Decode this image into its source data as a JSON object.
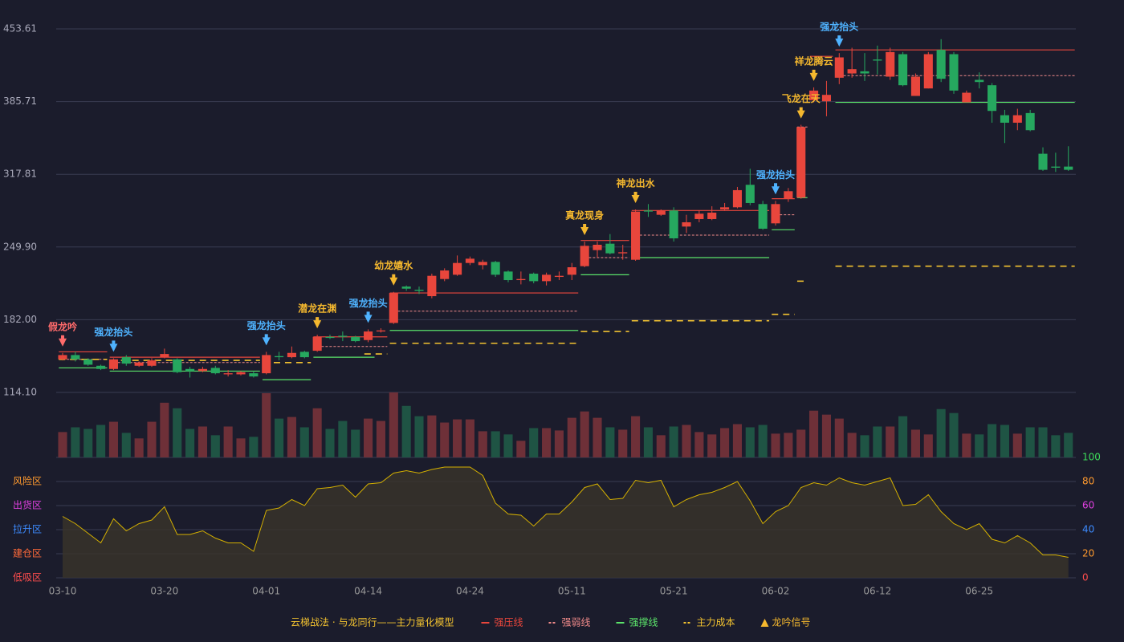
{
  "chart_data": {
    "type": "candlestick",
    "categories": [
      "03-10",
      null,
      null,
      null,
      null,
      null,
      null,
      null,
      "03-20",
      null,
      null,
      null,
      null,
      null,
      null,
      null,
      "04-01",
      null,
      null,
      null,
      null,
      null,
      null,
      null,
      "04-14",
      null,
      null,
      null,
      null,
      null,
      null,
      null,
      "04-24",
      null,
      null,
      null,
      null,
      null,
      null,
      null,
      "05-11",
      null,
      null,
      null,
      null,
      null,
      null,
      null,
      "05-21",
      null,
      null,
      null,
      null,
      null,
      null,
      null,
      "06-02",
      null,
      null,
      null,
      null,
      null,
      null,
      null,
      "06-12",
      null,
      null,
      null,
      null,
      null,
      null,
      null,
      "06-25",
      null,
      null,
      null,
      null,
      null,
      null,
      null
    ],
    "open": [
      145,
      149,
      145,
      139,
      136,
      147,
      139,
      139,
      147,
      145,
      136,
      134,
      137,
      131,
      131,
      132,
      132,
      148,
      147,
      152,
      153,
      166,
      167,
      166,
      163,
      171,
      179,
      213,
      210,
      204,
      220,
      224,
      235,
      233,
      236,
      227,
      219,
      225,
      218,
      222,
      224,
      232,
      247,
      253,
      244,
      238,
      284,
      280,
      284,
      269,
      276,
      276,
      285,
      287,
      308,
      290,
      272,
      295,
      296,
      387,
      386,
      408,
      412,
      414,
      425,
      409,
      430,
      391,
      398,
      434,
      430,
      385,
      406,
      401,
      373,
      366,
      375,
      337,
      325,
      325
    ],
    "high": [
      151,
      152,
      146,
      140,
      146,
      149,
      143,
      146,
      155,
      146,
      138,
      138,
      139,
      135,
      134,
      134,
      152,
      152,
      157,
      153,
      168,
      168,
      171,
      167,
      173,
      174,
      208,
      214,
      213,
      225,
      230,
      242,
      241,
      238,
      237,
      228,
      227,
      226,
      226,
      227,
      235,
      255,
      255,
      262,
      252,
      285,
      290,
      285,
      287,
      280,
      284,
      288,
      291,
      306,
      323,
      293,
      293,
      305,
      364,
      399,
      405,
      431,
      436,
      431,
      438,
      436,
      432,
      412,
      432,
      444,
      432,
      396,
      413,
      403,
      378,
      379,
      378,
      343,
      338,
      344
    ],
    "low": [
      144,
      143,
      139,
      135,
      135,
      139,
      138,
      138,
      146,
      132,
      128,
      133,
      131,
      129,
      130,
      128,
      131,
      144,
      146,
      146,
      152,
      164,
      162,
      161,
      161,
      170,
      178,
      209,
      206,
      202,
      218,
      223,
      233,
      229,
      222,
      217,
      215,
      216,
      214,
      219,
      219,
      231,
      240,
      243,
      238,
      237,
      278,
      279,
      255,
      263,
      273,
      275,
      284,
      286,
      289,
      266,
      270,
      292,
      295,
      385,
      372,
      402,
      408,
      405,
      411,
      406,
      400,
      391,
      398,
      404,
      393,
      385,
      398,
      366,
      347,
      359,
      358,
      321,
      320,
      321
    ],
    "close": [
      149,
      145,
      140,
      136,
      145,
      141,
      142,
      144,
      150,
      133,
      134,
      136,
      132,
      132,
      133,
      129,
      149,
      147,
      151,
      147,
      166,
      165,
      166,
      162,
      171,
      172,
      207,
      211,
      209,
      223,
      228,
      235,
      239,
      236,
      224,
      219,
      220,
      218,
      224,
      223,
      231,
      251,
      252,
      244,
      245,
      283,
      283,
      284,
      258,
      273,
      281,
      282,
      287,
      303,
      291,
      267,
      290,
      302,
      362,
      396,
      392,
      427,
      416,
      412,
      424,
      432,
      401,
      409,
      430,
      407,
      396,
      394,
      404,
      377,
      366,
      373,
      359,
      322,
      324,
      322
    ],
    "up_color": "#e8463c",
    "down_color": "#26a85f",
    "ylim": [
      114.1,
      453.61
    ],
    "yticks": [
      {
        "value": 114.1,
        "label": "114.10"
      },
      {
        "value": 182,
        "label": "182.00"
      },
      {
        "value": 249.9,
        "label": "249.90"
      },
      317.81,
      385.71,
      453.61
    ],
    "grid": true,
    "volume": {
      "values": [
        32,
        38,
        36,
        41,
        45,
        31,
        24,
        45,
        69,
        62,
        36,
        39,
        28,
        39,
        24,
        26,
        81,
        49,
        51,
        38,
        62,
        36,
        46,
        35,
        49,
        46,
        82,
        65,
        52,
        53,
        44,
        48,
        48,
        33,
        33,
        29,
        21,
        37,
        37,
        34,
        50,
        58,
        50,
        38,
        35,
        52,
        38,
        28,
        39,
        41,
        32,
        29,
        37,
        42,
        38,
        41,
        30,
        31,
        35,
        59,
        54,
        49,
        31,
        28,
        39,
        39,
        52,
        35,
        29,
        61,
        56,
        30,
        29,
        42,
        41,
        30,
        38,
        38,
        28,
        31
      ],
      "up_color": "#6e3038",
      "down_color": "#1f5444"
    },
    "levels": [
      {
        "name": "强压线",
        "color": "#e8463c",
        "dash": false,
        "values": [
          152,
          152,
          152,
          152,
          147,
          147,
          147,
          147,
          147,
          147,
          147,
          147,
          147,
          147,
          147,
          147,
          null,
          null,
          null,
          null,
          166,
          166,
          166,
          166,
          166,
          166,
          207,
          207,
          207,
          207,
          207,
          207,
          207,
          207,
          207,
          207,
          207,
          207,
          207,
          207,
          207,
          256,
          256,
          256,
          256,
          284,
          284,
          284,
          284,
          284,
          284,
          284,
          284,
          284,
          284,
          284,
          295,
          295,
          null,
          428,
          428,
          434,
          434,
          434,
          434,
          434,
          434,
          434,
          434,
          434,
          434,
          434,
          434,
          434,
          434,
          434,
          434,
          434,
          434,
          434
        ]
      },
      {
        "name": "强弱线",
        "color": "#f08a8a",
        "dash": true,
        "values": [
          145,
          145,
          145,
          145,
          142,
          142,
          142,
          142,
          142,
          142,
          142,
          142,
          142,
          142,
          142,
          142,
          null,
          null,
          null,
          null,
          157,
          157,
          157,
          157,
          157,
          157,
          190,
          190,
          190,
          190,
          190,
          190,
          190,
          190,
          190,
          190,
          190,
          190,
          190,
          190,
          190,
          240,
          240,
          240,
          240,
          261,
          261,
          261,
          261,
          261,
          261,
          261,
          261,
          261,
          261,
          261,
          280,
          280,
          362,
          null,
          null,
          410,
          410,
          410,
          410,
          410,
          410,
          410,
          410,
          410,
          410,
          410,
          410,
          410,
          410,
          410,
          410,
          410,
          410,
          410
        ]
      },
      {
        "name": "强撑线",
        "color": "#5be36a",
        "dash": false,
        "values": [
          137,
          137,
          137,
          137,
          134,
          134,
          134,
          134,
          134,
          134,
          134,
          134,
          134,
          134,
          134,
          134,
          126,
          126,
          126,
          126,
          147,
          147,
          147,
          147,
          147,
          null,
          172,
          172,
          172,
          172,
          172,
          172,
          172,
          172,
          172,
          172,
          172,
          172,
          172,
          172,
          172,
          224,
          224,
          224,
          224,
          240,
          240,
          240,
          240,
          240,
          240,
          240,
          240,
          240,
          240,
          240,
          266,
          266,
          296,
          null,
          null,
          385,
          385,
          385,
          385,
          385,
          385,
          385,
          385,
          385,
          385,
          385,
          385,
          385,
          385,
          385,
          385,
          385,
          385,
          385
        ]
      },
      {
        "name": "主力成本",
        "color": "#f2c230",
        "dash": true,
        "values": [
          145,
          145,
          145,
          145,
          144,
          144,
          144,
          144,
          144,
          144,
          144,
          144,
          144,
          144,
          144,
          144,
          142,
          142,
          142,
          142,
          null,
          null,
          null,
          null,
          150,
          150,
          160,
          160,
          160,
          160,
          160,
          160,
          160,
          160,
          160,
          160,
          160,
          160,
          160,
          160,
          160,
          171,
          171,
          171,
          171,
          181,
          181,
          181,
          181,
          181,
          181,
          181,
          181,
          181,
          181,
          181,
          187,
          187,
          218,
          null,
          null,
          232,
          232,
          232,
          232,
          232,
          232,
          232,
          232,
          232,
          232,
          232,
          232,
          232,
          232,
          232,
          232,
          232,
          232,
          232
        ]
      }
    ],
    "signals": {
      "name": "龙吟信号",
      "color": "#f5b82e",
      "items": [
        {
          "text": "假龙吟",
          "color": "#ff6b6b"
        },
        null,
        null,
        null,
        {
          "text": "强龙抬头",
          "color": "#4fb3ff"
        },
        null,
        null,
        null,
        null,
        null,
        null,
        null,
        null,
        null,
        null,
        null,
        {
          "text": "强龙抬头",
          "color": "#4fb3ff"
        },
        null,
        null,
        null,
        {
          "text": "潜龙在渊",
          "color": "#f5b82e"
        },
        null,
        null,
        null,
        {
          "text": "强龙抬头",
          "color": "#4fb3ff"
        },
        null,
        {
          "text": "幼龙嬉水",
          "color": "#f5b82e"
        },
        null,
        null,
        null,
        null,
        null,
        null,
        null,
        null,
        null,
        null,
        null,
        null,
        null,
        null,
        {
          "text": "真龙现身",
          "color": "#f5b82e"
        },
        null,
        null,
        null,
        {
          "text": "神龙出水",
          "color": "#f5b82e"
        },
        null,
        null,
        null,
        null,
        null,
        null,
        null,
        null,
        null,
        null,
        {
          "text": "强龙抬头",
          "color": "#4fb3ff"
        },
        null,
        {
          "text": "飞龙在天",
          "color": "#f5b82e"
        },
        {
          "text": "祥龙腾云",
          "color": "#f5b82e"
        },
        null,
        {
          "text": "强龙抬头",
          "color": "#4fb3ff"
        },
        null,
        null,
        null,
        null,
        null,
        null,
        null,
        null,
        null,
        null,
        null,
        null,
        null,
        null,
        null,
        null,
        null,
        null
      ]
    },
    "indicator": {
      "values": [
        51,
        45,
        37,
        29,
        49,
        39,
        45,
        48,
        59,
        36,
        36,
        39,
        33,
        29,
        29,
        22,
        56,
        58,
        65,
        60,
        74,
        75,
        77,
        67,
        78,
        79,
        87,
        89,
        87,
        90,
        92,
        92,
        92,
        85,
        62,
        53,
        52,
        43,
        53,
        53,
        63,
        75,
        78,
        65,
        66,
        81,
        79,
        81,
        59,
        65,
        69,
        71,
        75,
        80,
        64,
        45,
        55,
        60,
        75,
        79,
        77,
        83,
        79,
        77,
        80,
        83,
        60,
        61,
        69,
        55,
        45,
        40,
        45,
        32,
        29,
        35,
        29,
        19,
        19,
        17
      ],
      "color": "#d4b000",
      "fill": "#39352a",
      "ylim": [
        0,
        100
      ],
      "yticks": [
        0,
        20,
        40,
        60,
        80,
        100
      ],
      "tick_colors": [
        "#ff4d4d",
        "#ff9a2e",
        "#3d8bff",
        "#e040e0",
        "#ff9a2e",
        "#3ddc5a"
      ],
      "zones": [
        {
          "label": "风险区",
          "value": 80,
          "color": "#ff9a2e"
        },
        {
          "label": "出货区",
          "value": 60,
          "color": "#e040e0"
        },
        {
          "label": "拉升区",
          "value": 40,
          "color": "#3d8bff"
        },
        {
          "label": "建仓区",
          "value": 20,
          "color": "#ff6a3a"
        },
        {
          "label": "低吸区",
          "value": 0,
          "color": "#ff4d4d"
        }
      ]
    },
    "legend_title": "云梯战法 · 与龙同行——主力量化模型",
    "legend_title_color": "#f2c230"
  }
}
